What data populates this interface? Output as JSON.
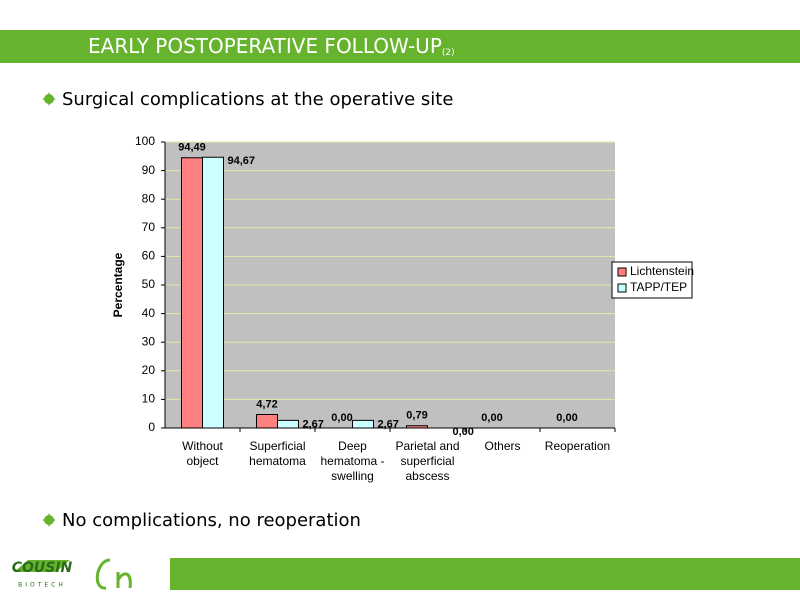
{
  "slide": {
    "title": "EARLY POSTOPERATIVE FOLLOW-UP",
    "title_suffix": "(2)",
    "bullets": [
      "Surgical complications at the operative site",
      "No complications, no reoperation"
    ],
    "logo_text": "COUSIN",
    "logo_subtext": "BIOTECH"
  },
  "chart_data": {
    "type": "bar",
    "y_label": "Percentage",
    "categories": [
      "Without object",
      "Superficial hematoma",
      "Deep hematoma - swelling",
      "Parietal and superficial abscess",
      "Others",
      "Reoperation"
    ],
    "series": [
      {
        "name": "Lichtenstein",
        "color": "#ff8080",
        "values": [
          94.49,
          4.72,
          0,
          0.79,
          0,
          0
        ],
        "value_labels": [
          "94,49",
          "4,72",
          "0,00",
          "0,79",
          "0,00",
          "0,00"
        ]
      },
      {
        "name": "TAPP/TEP",
        "color": "#ccffff",
        "values": [
          94.67,
          2.67,
          2.67,
          0,
          0,
          0
        ],
        "value_labels": [
          "94,67",
          "2,67",
          "2,67",
          "0,00",
          null,
          null
        ]
      }
    ],
    "ylim": [
      0,
      100
    ],
    "yticks": [
      0,
      10,
      20,
      30,
      40,
      50,
      60,
      70,
      80,
      90,
      100
    ],
    "grid": true,
    "legend": "right"
  }
}
